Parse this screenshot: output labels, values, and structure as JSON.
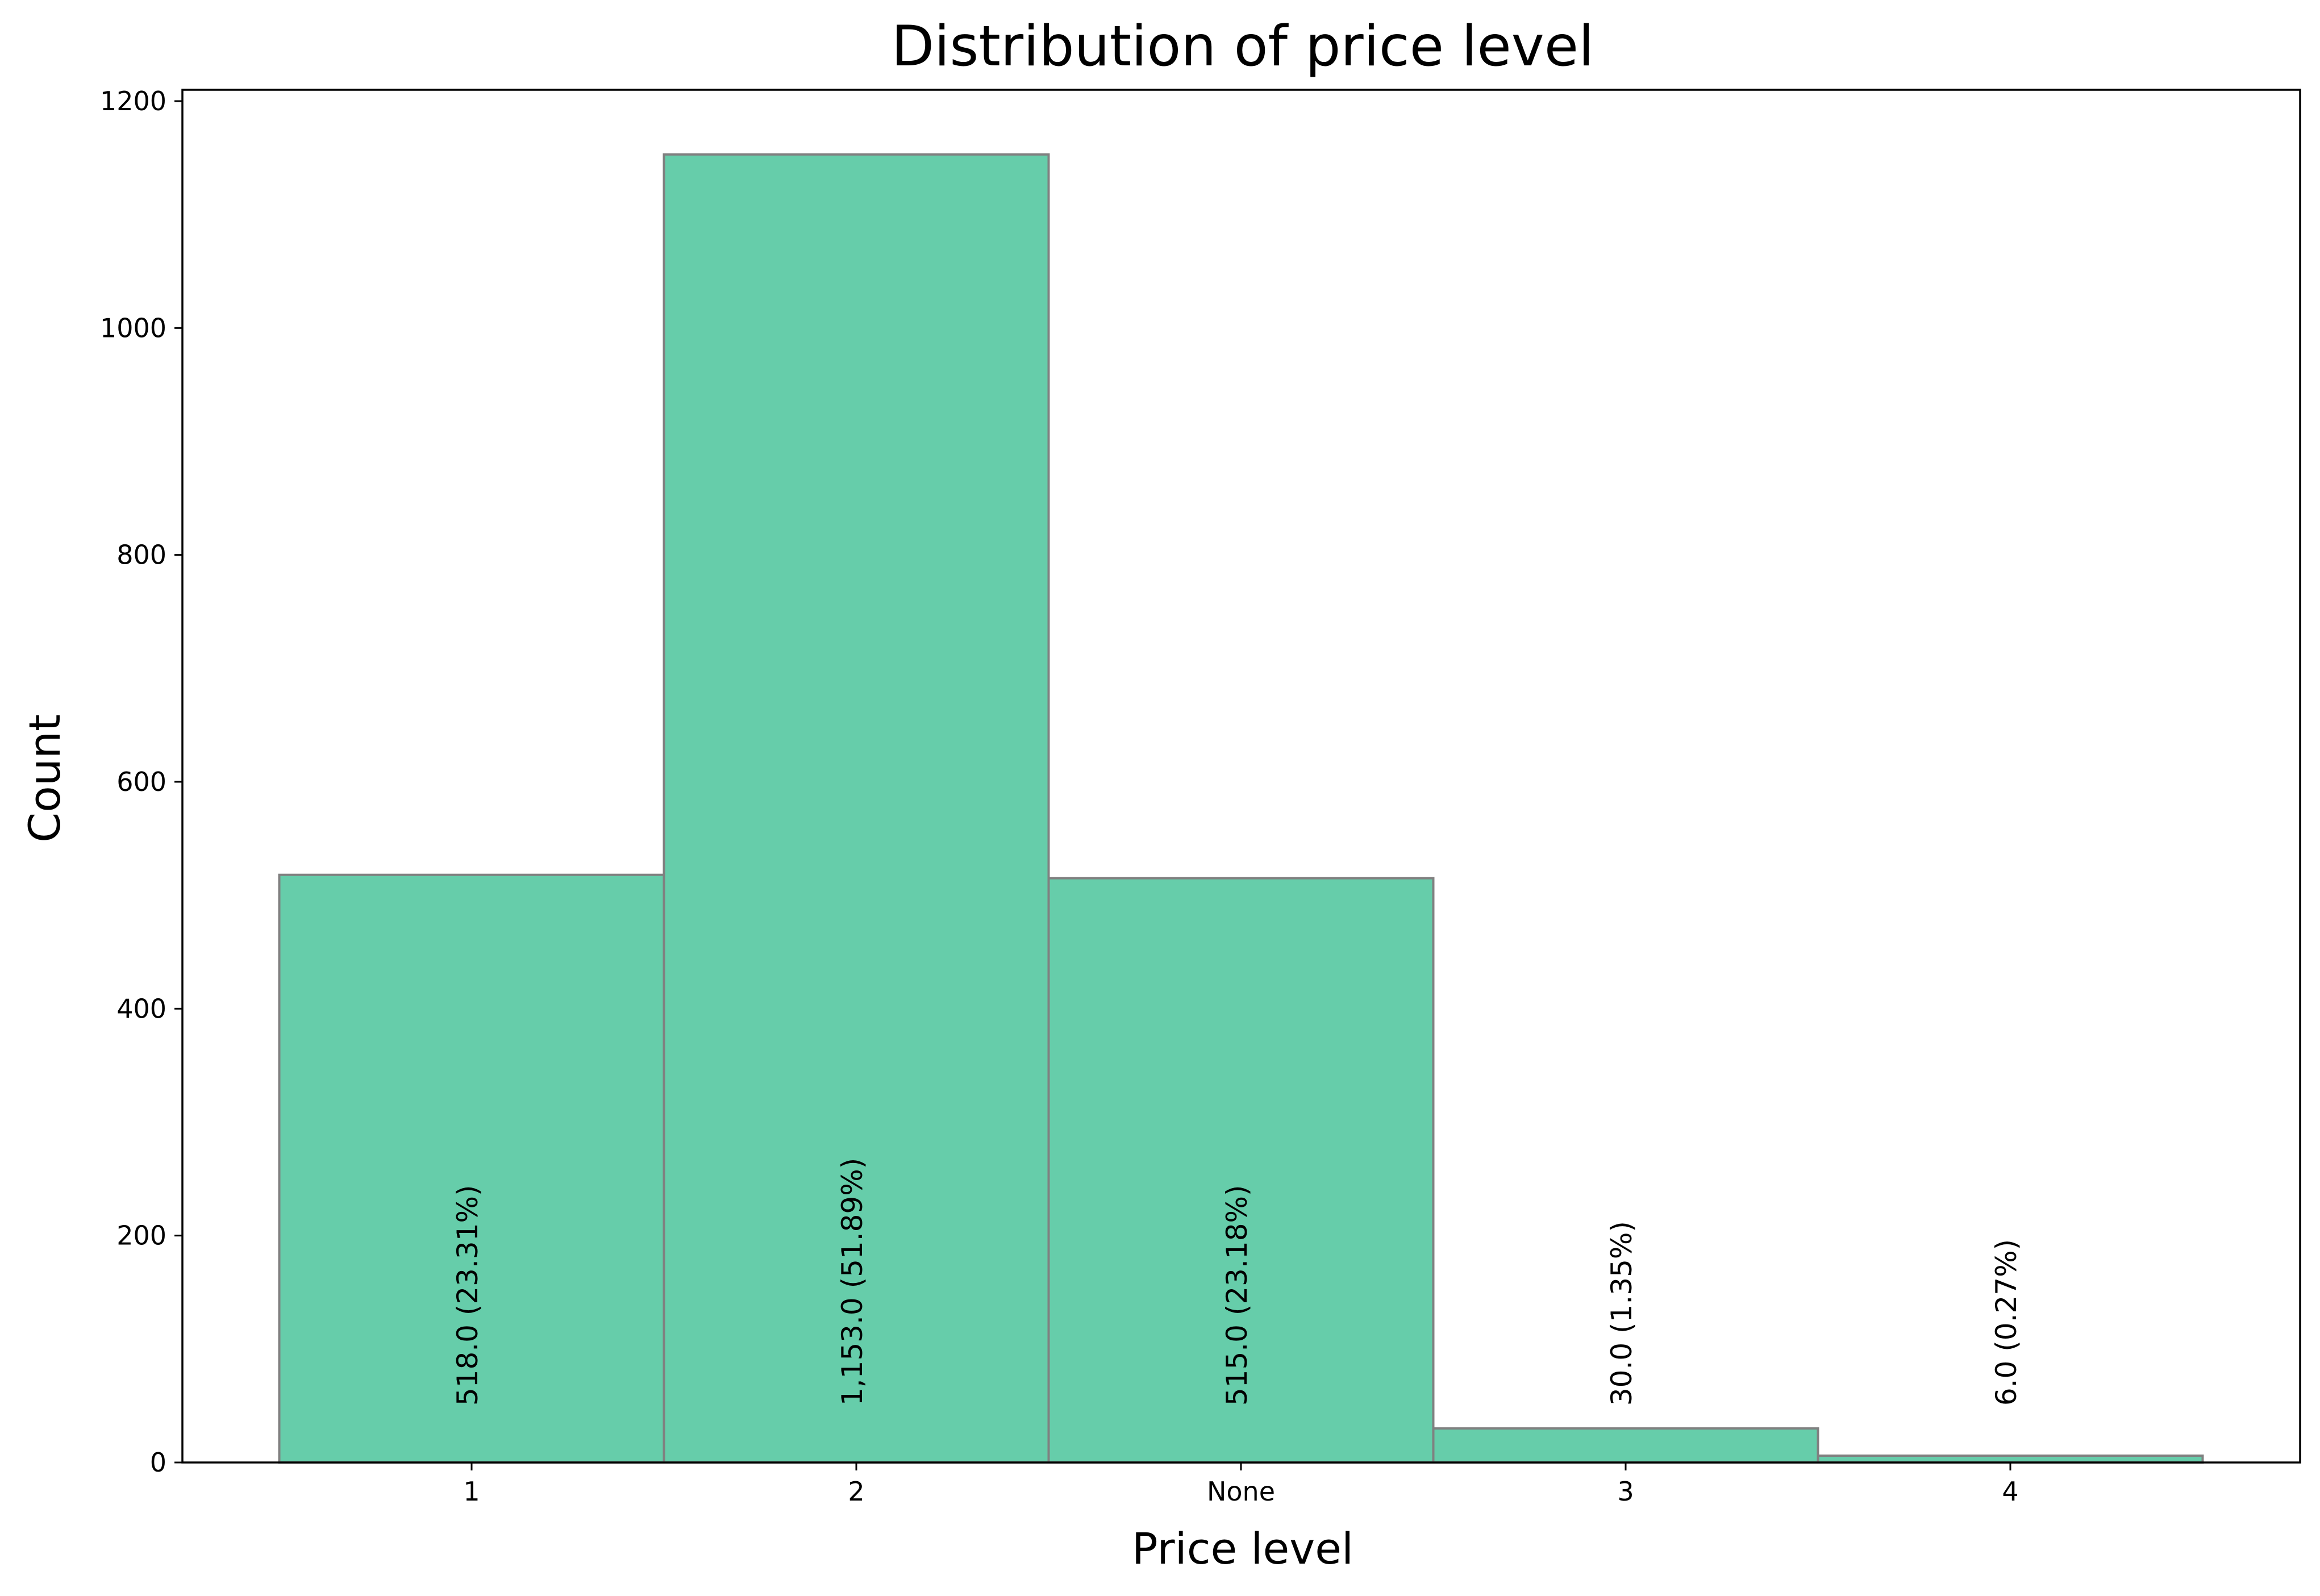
{
  "chart_data": {
    "type": "bar",
    "title": "Distribution of price level",
    "xlabel": "Price level",
    "ylabel": "Count",
    "categories": [
      "1",
      "2",
      "None",
      "3",
      "4"
    ],
    "values": [
      518,
      1153,
      515,
      30,
      6
    ],
    "labels": [
      "518.0  (23.31%)",
      "1,153.0  (51.89%)",
      "515.0  (23.18%)",
      "30.0  (1.35%)",
      "6.0  (0.27%)"
    ],
    "ylim": [
      0,
      1210
    ],
    "yticks": [
      "0",
      "200",
      "400",
      "600",
      "800",
      "1000",
      "1200"
    ],
    "ytick_values": [
      0,
      200,
      400,
      600,
      800,
      1000,
      1200
    ],
    "grid": false,
    "legend": "none",
    "colors": {
      "bar_fill": "#66cdaa",
      "bar_edge": "#808080",
      "axis": "#000000"
    }
  }
}
